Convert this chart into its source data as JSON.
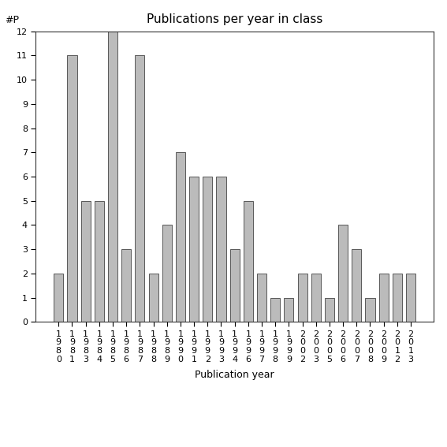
{
  "title": "Publications per year in class",
  "xlabel": "Publication year",
  "ylabel": "#P",
  "categories": [
    "1980",
    "1981",
    "1983",
    "1984",
    "1985",
    "1986",
    "1987",
    "1988",
    "1989",
    "1990",
    "1991",
    "1992",
    "1993",
    "1994",
    "1996",
    "1997",
    "1998",
    "1999",
    "2002",
    "2003",
    "2005",
    "2006",
    "2007",
    "2008",
    "2009",
    "2012",
    "2013"
  ],
  "values": [
    2,
    11,
    5,
    5,
    12,
    3,
    11,
    2,
    4,
    7,
    6,
    6,
    6,
    3,
    5,
    2,
    1,
    1,
    2,
    2,
    1,
    4,
    3,
    1,
    2,
    2,
    2
  ],
  "bar_color": "#bbbbbb",
  "bar_edge_color": "#444444",
  "ylim": [
    0,
    12
  ],
  "yticks": [
    0,
    1,
    2,
    3,
    4,
    5,
    6,
    7,
    8,
    9,
    10,
    11,
    12
  ],
  "title_fontsize": 11,
  "label_fontsize": 9,
  "tick_fontsize": 8,
  "background_color": "#ffffff"
}
